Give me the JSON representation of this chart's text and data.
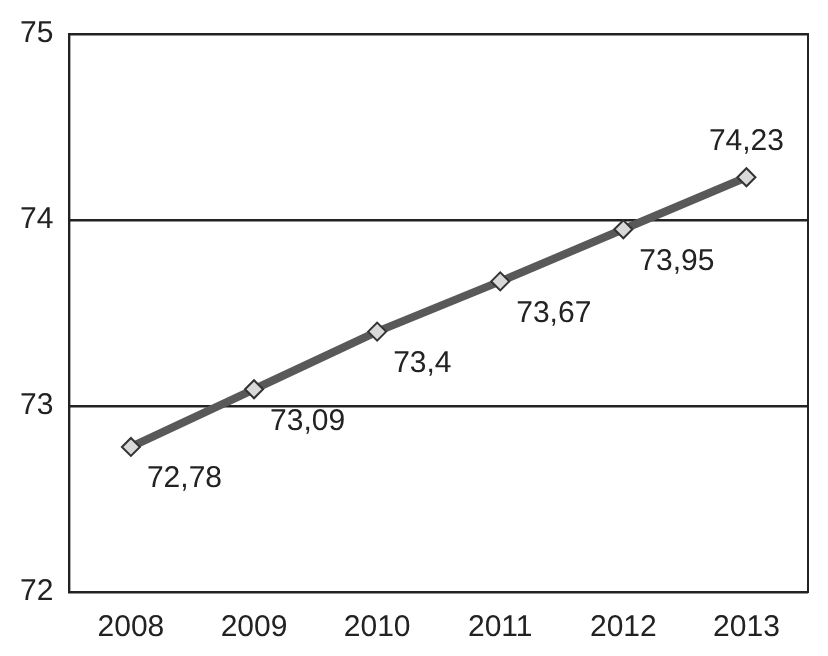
{
  "chart_data": {
    "type": "line",
    "categories": [
      "2008",
      "2009",
      "2010",
      "2011",
      "2012",
      "2013"
    ],
    "series": [
      {
        "color": "#595959",
        "values": [
          72.78,
          73.09,
          73.4,
          73.67,
          73.95,
          74.23
        ],
        "value_labels": [
          "72,78",
          "73,09",
          "73,4",
          "73,67",
          "73,95",
          "74,23"
        ]
      }
    ],
    "ylim": [
      72,
      75
    ],
    "yticks": [
      72,
      73,
      74,
      75
    ],
    "grid": "y",
    "legend": false,
    "marker": "diamond",
    "line_style": "solid"
  }
}
